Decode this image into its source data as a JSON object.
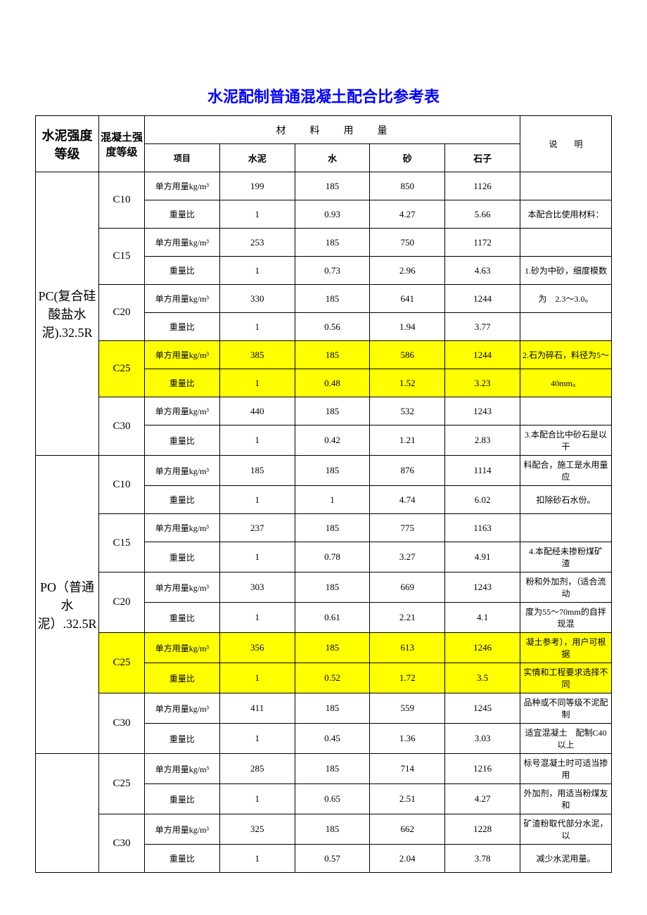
{
  "title": "水泥配制普通混凝土配合比参考表",
  "headers": {
    "cementGrade": "水泥强度等级",
    "strength": "混凝土强度等级",
    "materialGroup": "材　　料　　用　　量",
    "item": "项目",
    "cement": "水泥",
    "water": "水",
    "sand": "砂",
    "stone": "石子",
    "note": "说　　明"
  },
  "itemLabels": {
    "unit": "单方用量kg/m³",
    "ratio": "重量比"
  },
  "groups": [
    {
      "name": "PC(复合硅酸盐水泥).32.5R",
      "rows": [
        {
          "grade": "C10",
          "hl": false,
          "unit": [
            "199",
            "185",
            "850",
            "1126"
          ],
          "note_u": "",
          "ratio": [
            "1",
            "0.93",
            "4.27",
            "5.66"
          ],
          "note_r": "本配合比使用材料："
        },
        {
          "grade": "C15",
          "hl": false,
          "unit": [
            "253",
            "185",
            "750",
            "1172"
          ],
          "note_u": "",
          "ratio": [
            "1",
            "0.73",
            "2.96",
            "4.63"
          ],
          "note_r": "1.砂为中砂，细度模数"
        },
        {
          "grade": "C20",
          "hl": false,
          "unit": [
            "330",
            "185",
            "641",
            "1244"
          ],
          "note_u": "为　2.3～3.0。",
          "ratio": [
            "1",
            "0.56",
            "1.94",
            "3.77"
          ],
          "note_r": ""
        },
        {
          "grade": "C25",
          "hl": true,
          "unit": [
            "385",
            "185",
            "586",
            "1244"
          ],
          "note_u": "2.石为碎石，料径为5～",
          "ratio": [
            "1",
            "0.48",
            "1.52",
            "3.23"
          ],
          "note_r": "40mm。"
        },
        {
          "grade": "C30",
          "hl": false,
          "unit": [
            "440",
            "185",
            "532",
            "1243"
          ],
          "note_u": "",
          "ratio": [
            "1",
            "0.42",
            "1.21",
            "2.83"
          ],
          "note_r": "3.本配合比中砂石是以干"
        }
      ]
    },
    {
      "name": "PO（普通水泥）.32.5R",
      "rows": [
        {
          "grade": "C10",
          "hl": false,
          "unit": [
            "185",
            "185",
            "876",
            "1114"
          ],
          "note_u": "料配合，施工是水用量应",
          "ratio": [
            "1",
            "1",
            "4.74",
            "6.02"
          ],
          "note_r": "扣除砂石水份。"
        },
        {
          "grade": "C15",
          "hl": false,
          "unit": [
            "237",
            "185",
            "775",
            "1163"
          ],
          "note_u": "",
          "ratio": [
            "1",
            "0.78",
            "3.27",
            "4.91"
          ],
          "note_r": "4.本配经未掺粉煤矿　渣"
        },
        {
          "grade": "C20",
          "hl": false,
          "unit": [
            "303",
            "185",
            "669",
            "1243"
          ],
          "note_u": "粉和外加剂，（适合流动",
          "ratio": [
            "1",
            "0.61",
            "2.21",
            "4.1"
          ],
          "note_r": "度为55～70mm的自拌现混"
        },
        {
          "grade": "C25",
          "hl": true,
          "unit": [
            "356",
            "185",
            "613",
            "1246"
          ],
          "note_u": "凝土参考），用户可根据",
          "ratio": [
            "1",
            "0.52",
            "1.72",
            "3.5"
          ],
          "note_r": "实情和工程要求选择不同"
        },
        {
          "grade": "C30",
          "hl": false,
          "unit": [
            "411",
            "185",
            "559",
            "1245"
          ],
          "note_u": "品种或不同等级不泥配制",
          "ratio": [
            "1",
            "0.45",
            "1.36",
            "3.03"
          ],
          "note_r": "适宜混凝土　配制C40以上"
        }
      ]
    },
    {
      "name": "",
      "rows": [
        {
          "grade": "C25",
          "hl": false,
          "unit": [
            "285",
            "185",
            "714",
            "1216"
          ],
          "note_u": "标号混凝土时可适当掺用",
          "ratio": [
            "1",
            "0.65",
            "2.51",
            "4.27"
          ],
          "note_r": "外加剂，用适当粉煤友和"
        },
        {
          "grade": "C30",
          "hl": false,
          "unit": [
            "325",
            "185",
            "662",
            "1228"
          ],
          "note_u": "矿渣粉取代部分水泥，以",
          "ratio": [
            "1",
            "0.57",
            "2.04",
            "3.78"
          ],
          "note_r": "减少水泥用量。"
        }
      ]
    }
  ],
  "colors": {
    "titleColor": "#0000ff",
    "highlight": "#ffff00",
    "border": "#000000",
    "background": "#ffffff"
  }
}
